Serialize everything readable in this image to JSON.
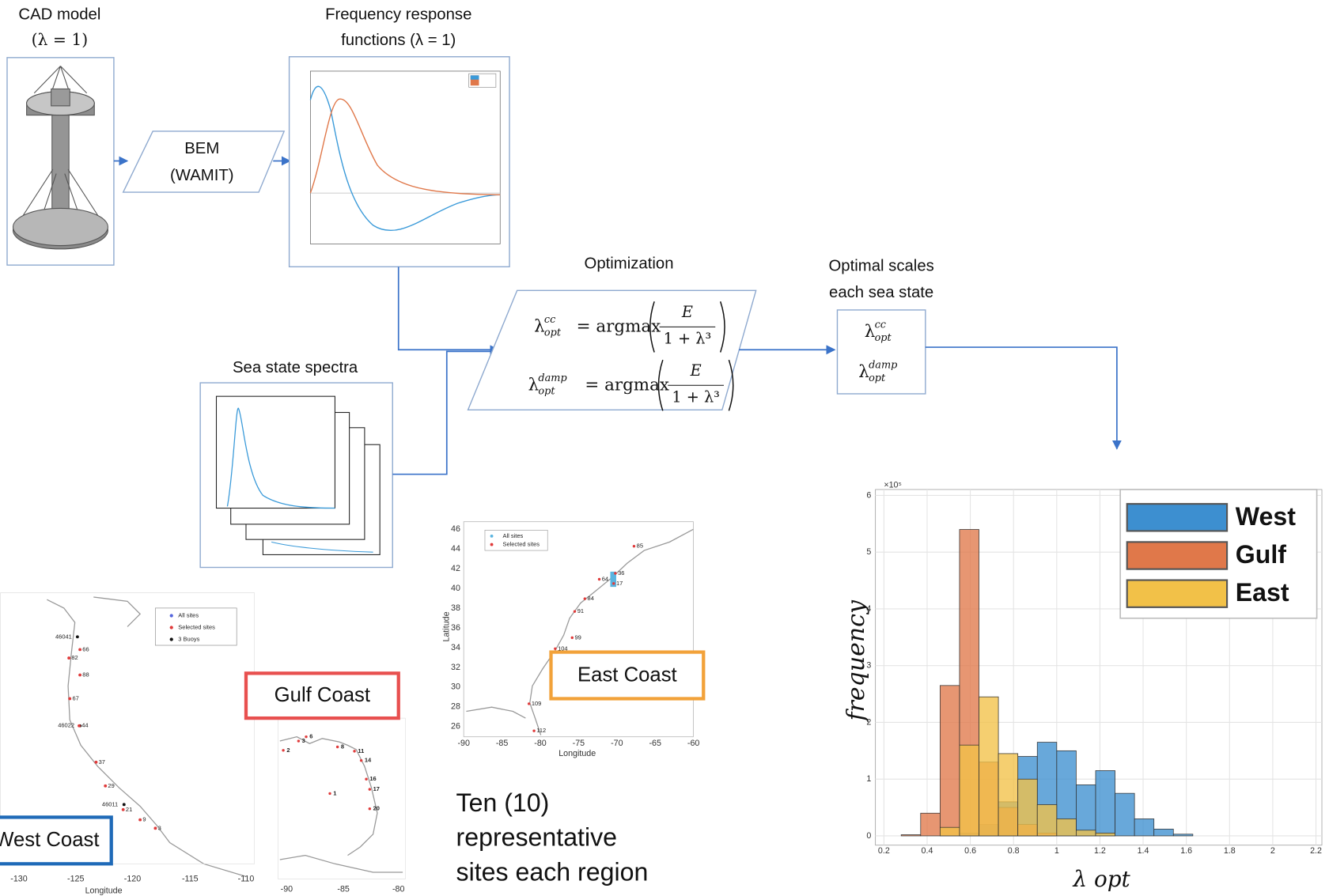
{
  "cad": {
    "title": "CAD model",
    "subtitle": "(λ = 1)"
  },
  "bem": {
    "line1": "BEM",
    "line2": "(WAMIT)"
  },
  "frf": {
    "title1": "Frequency response",
    "title2": "functions (λ = 1)"
  },
  "spectra": {
    "title": "Sea state spectra"
  },
  "optimization": {
    "title": "Optimization",
    "equations": [
      {
        "symbol": "λ",
        "sup": "cc",
        "sub": "opt",
        "op": "= argmax",
        "num": "E",
        "den": "1 + λ³"
      },
      {
        "symbol": "λ",
        "sup": "damp",
        "sub": "opt",
        "op": "= argmax",
        "num": "E",
        "den": "1 + λ³"
      }
    ]
  },
  "optimal": {
    "title1": "Optimal scales",
    "title2": "each sea state",
    "items": [
      {
        "symbol": "λ",
        "sup": "cc",
        "sub": "opt"
      },
      {
        "symbol": "λ",
        "sup": "damp",
        "sub": "opt"
      }
    ]
  },
  "maps": {
    "west": {
      "label": "West Coast",
      "legend": [
        "All sites",
        "Selected sites",
        "3 Buoys"
      ],
      "xticks": [
        "-130",
        "-125",
        "-120",
        "-115",
        "-110"
      ],
      "xlabel": "Longitude",
      "sites": [
        "46041",
        "66",
        "82",
        "88",
        "67",
        "46022",
        "44",
        "37",
        "29",
        "46011",
        "21",
        "9",
        "3"
      ]
    },
    "gulf": {
      "label": "Gulf Coast",
      "xticks": [
        "-90",
        "-85",
        "-80"
      ],
      "sites": [
        "2",
        "3",
        "6",
        "8",
        "11",
        "14",
        "16",
        "17",
        "1",
        "20"
      ]
    },
    "east": {
      "label": "East Coast",
      "legend": [
        "All sites",
        "Selected sites"
      ],
      "xticks": [
        "-90",
        "-85",
        "-80",
        "-75",
        "-70",
        "-65",
        "-60"
      ],
      "yticks": [
        "26",
        "28",
        "30",
        "32",
        "34",
        "36",
        "38",
        "40",
        "42",
        "44",
        "46"
      ],
      "xlabel": "Longitude",
      "ylabel": "Latitude",
      "sites": [
        "85",
        "36",
        "64",
        "17",
        "84",
        "91",
        "99",
        "104",
        "109",
        "112"
      ]
    }
  },
  "note": [
    "Ten (10)",
    "representative",
    "sites each region"
  ],
  "chart_data": {
    "type": "histogram",
    "xlabel": "λ opt",
    "ylabel": "frequency",
    "exponent_label": "×10⁵",
    "bins": [
      0.28,
      0.37,
      0.46,
      0.55,
      0.64,
      0.73,
      0.82,
      0.91,
      1.0,
      1.09,
      1.18,
      1.27,
      1.36,
      1.45,
      1.54,
      1.63
    ],
    "series": [
      {
        "name": "West",
        "color": "#3d8fd0",
        "values": [
          0,
          0,
          0,
          0.05,
          0.2,
          0.6,
          1.4,
          1.65,
          1.5,
          0.9,
          1.15,
          0.75,
          0.3,
          0.12,
          0.03
        ]
      },
      {
        "name": "Gulf",
        "color": "#e0784a",
        "values": [
          0.02,
          0.4,
          2.65,
          5.4,
          1.3,
          0.5,
          0.2,
          0.05,
          0,
          0,
          0,
          0,
          0,
          0,
          0
        ]
      },
      {
        "name": "East",
        "color": "#f2c148",
        "values": [
          0,
          0,
          0.15,
          1.6,
          2.45,
          1.45,
          1.0,
          0.55,
          0.3,
          0.1,
          0.05,
          0,
          0,
          0,
          0
        ]
      }
    ],
    "xlim": [
      0.2,
      2.2
    ],
    "ylim": [
      0,
      6
    ],
    "xticks": [
      0.2,
      0.4,
      0.6,
      0.8,
      1,
      1.2,
      1.4,
      1.6,
      1.8,
      2,
      2.2
    ],
    "yticks": [
      0,
      1,
      2,
      3,
      4,
      5,
      6
    ],
    "grid": true,
    "legend": "top-right"
  }
}
